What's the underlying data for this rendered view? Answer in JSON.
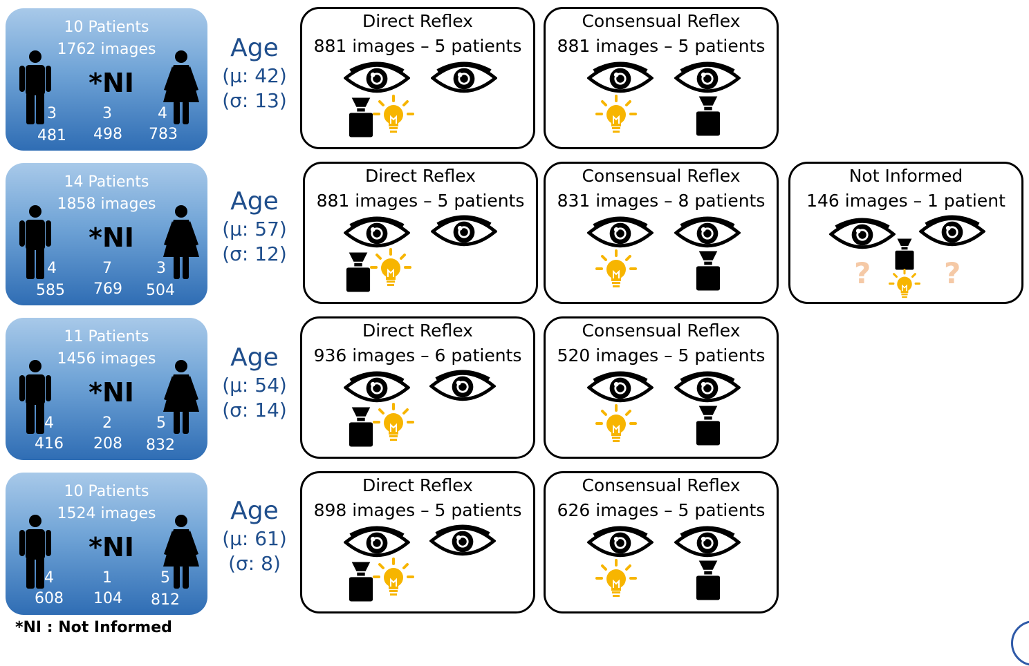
{
  "note": "*NI : Not Informed",
  "ni_mark": "*NI",
  "icons": {
    "male": "male-figure-icon",
    "female": "female-figure-icon",
    "eye": "eye-icon",
    "camera": "camera-icon",
    "bulb": "light-bulb-icon"
  },
  "colors": {
    "panel_top": "#a8c9e9",
    "panel_bottom": "#2f6db4",
    "age_text": "#1f4e8c",
    "bulb": "#f7b500",
    "question": "#f5c9a6"
  },
  "rows": [
    {
      "patients": "10 Patients",
      "images": "1762 images",
      "male_count": "3",
      "ni_count": "3",
      "female_count": "4",
      "male_images": "481",
      "ni_images": "498",
      "female_images": "783",
      "age_label": "Age",
      "age_mean": "(μ: 42)",
      "age_sd": "(σ: 13)",
      "direct": {
        "title": "Direct Reflex",
        "subtitle": "881 images – 5 patients"
      },
      "consensual": {
        "title": "Consensual Reflex",
        "subtitle": "881 images – 5 patients"
      }
    },
    {
      "patients": "14 Patients",
      "images": "1858 images",
      "male_count": "4",
      "ni_count": "7",
      "female_count": "3",
      "male_images": "585",
      "ni_images": "769",
      "female_images": "504",
      "age_label": "Age",
      "age_mean": "(μ: 57)",
      "age_sd": "(σ: 12)",
      "direct": {
        "title": "Direct Reflex",
        "subtitle": "881 images – 5 patients"
      },
      "consensual": {
        "title": "Consensual Reflex",
        "subtitle": "831 images – 8 patients"
      },
      "not_informed": {
        "title": "Not Informed",
        "subtitle": "146 images – 1 patient",
        "question": "?"
      }
    },
    {
      "patients": "11 Patients",
      "images": "1456 images",
      "male_count": "4",
      "ni_count": "2",
      "female_count": "5",
      "male_images": "416",
      "ni_images": "208",
      "female_images": "832",
      "age_label": "Age",
      "age_mean": "(μ: 54)",
      "age_sd": "(σ: 14)",
      "direct": {
        "title": "Direct Reflex",
        "subtitle": "936 images – 6 patients"
      },
      "consensual": {
        "title": "Consensual Reflex",
        "subtitle": "520 images – 5 patients"
      }
    },
    {
      "patients": "10 Patients",
      "images": "1524 images",
      "male_count": "4",
      "ni_count": "1",
      "female_count": "5",
      "male_images": "608",
      "ni_images": "104",
      "female_images": "812",
      "age_label": "Age",
      "age_mean": "(μ: 61)",
      "age_sd": "(σ: 8)",
      "direct": {
        "title": "Direct Reflex",
        "subtitle": "898 images – 5 patients"
      },
      "consensual": {
        "title": "Consensual Reflex",
        "subtitle": "626 images – 5 patients"
      }
    }
  ]
}
